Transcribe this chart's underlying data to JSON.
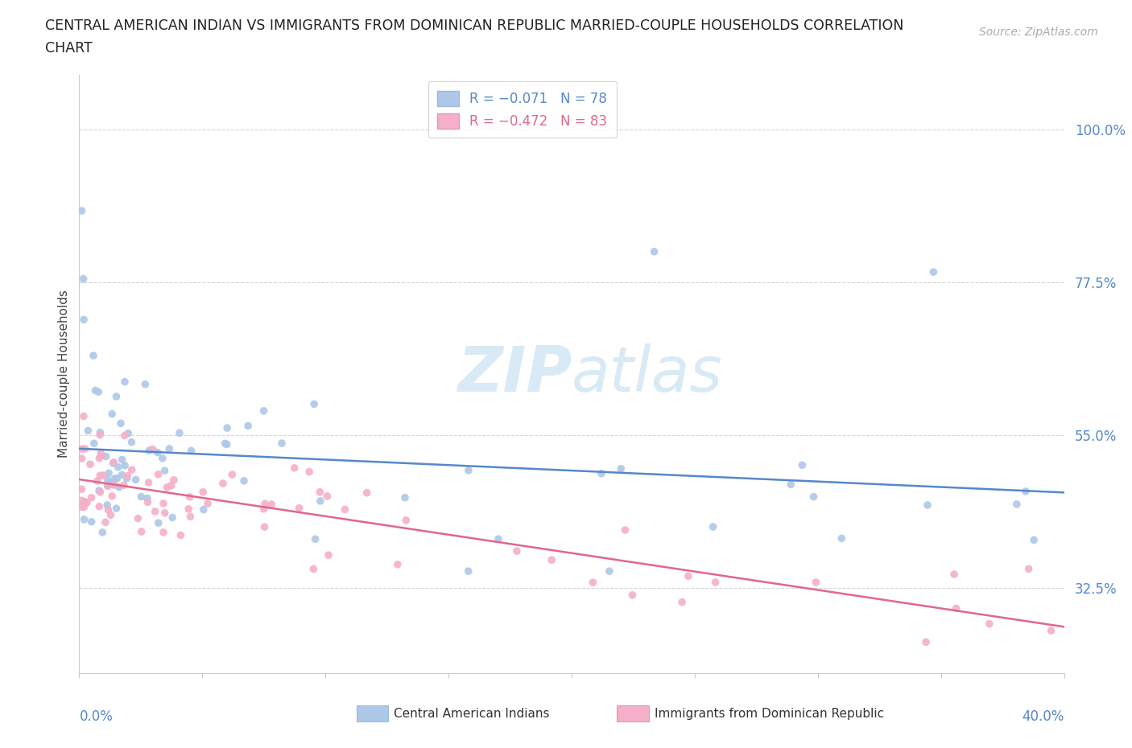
{
  "title_line1": "CENTRAL AMERICAN INDIAN VS IMMIGRANTS FROM DOMINICAN REPUBLIC MARRIED-COUPLE HOUSEHOLDS CORRELATION",
  "title_line2": "CHART",
  "source": "Source: ZipAtlas.com",
  "ylabel": "Married-couple Households",
  "ytick_labels": [
    "100.0%",
    "77.5%",
    "55.0%",
    "32.5%"
  ],
  "ytick_values": [
    1.0,
    0.775,
    0.55,
    0.325
  ],
  "xlim": [
    0.0,
    0.4
  ],
  "ylim": [
    0.2,
    1.08
  ],
  "r_blue": -0.071,
  "n_blue": 78,
  "r_pink": -0.472,
  "n_pink": 83,
  "scatter_color_blue": "#adc8e8",
  "scatter_color_pink": "#f5afc8",
  "line_color_blue": "#5588cc",
  "line_color_pink": "#e06888",
  "ytick_color": "#5588cc",
  "background_color": "#ffffff",
  "watermark_color": "#d8eaf5",
  "grid_color": "#cccccc",
  "spine_color": "#cccccc"
}
